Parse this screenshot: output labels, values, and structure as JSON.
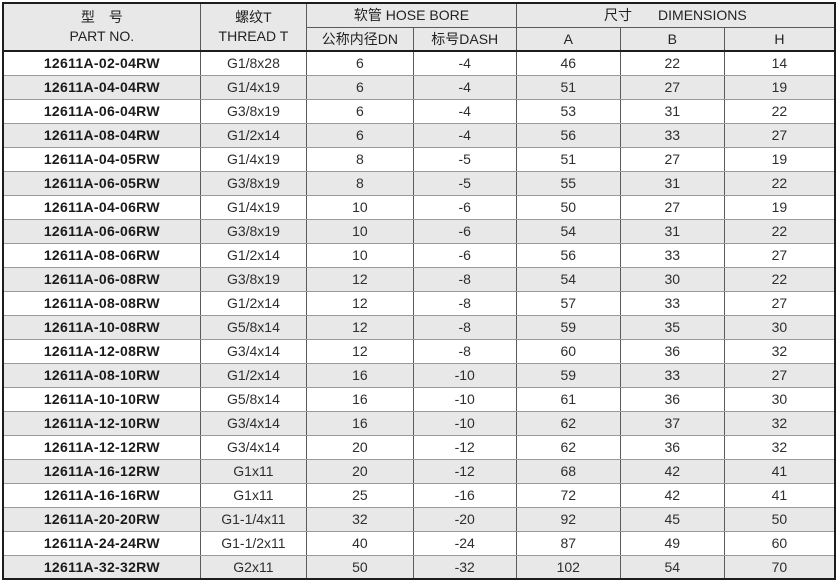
{
  "table": {
    "title_semantics": "hydraulic-fitting-specification-table",
    "headers": {
      "part_no_cn": "型　号",
      "part_no_en": "PART NO.",
      "thread_cn": "螺纹T",
      "thread_en": "THREAD  T",
      "hose_bore_cn": "软管",
      "hose_bore_en": "HOSE BORE",
      "dimensions_cn": "尺寸",
      "dimensions_en": "DIMENSIONS",
      "dn": "公称内径DN",
      "dash": "标号DASH",
      "a": "A",
      "b": "B",
      "h": "H"
    },
    "rows": [
      [
        "12611A-02-04RW",
        "G1/8x28",
        "6",
        "-4",
        "46",
        "22",
        "14"
      ],
      [
        "12611A-04-04RW",
        "G1/4x19",
        "6",
        "-4",
        "51",
        "27",
        "19"
      ],
      [
        "12611A-06-04RW",
        "G3/8x19",
        "6",
        "-4",
        "53",
        "31",
        "22"
      ],
      [
        "12611A-08-04RW",
        "G1/2x14",
        "6",
        "-4",
        "56",
        "33",
        "27"
      ],
      [
        "12611A-04-05RW",
        "G1/4x19",
        "8",
        "-5",
        "51",
        "27",
        "19"
      ],
      [
        "12611A-06-05RW",
        "G3/8x19",
        "8",
        "-5",
        "55",
        "31",
        "22"
      ],
      [
        "12611A-04-06RW",
        "G1/4x19",
        "10",
        "-6",
        "50",
        "27",
        "19"
      ],
      [
        "12611A-06-06RW",
        "G3/8x19",
        "10",
        "-6",
        "54",
        "31",
        "22"
      ],
      [
        "12611A-08-06RW",
        "G1/2x14",
        "10",
        "-6",
        "56",
        "33",
        "27"
      ],
      [
        "12611A-06-08RW",
        "G3/8x19",
        "12",
        "-8",
        "54",
        "30",
        "22"
      ],
      [
        "12611A-08-08RW",
        "G1/2x14",
        "12",
        "-8",
        "57",
        "33",
        "27"
      ],
      [
        "12611A-10-08RW",
        "G5/8x14",
        "12",
        "-8",
        "59",
        "35",
        "30"
      ],
      [
        "12611A-12-08RW",
        "G3/4x14",
        "12",
        "-8",
        "60",
        "36",
        "32"
      ],
      [
        "12611A-08-10RW",
        "G1/2x14",
        "16",
        "-10",
        "59",
        "33",
        "27"
      ],
      [
        "12611A-10-10RW",
        "G5/8x14",
        "16",
        "-10",
        "61",
        "36",
        "30"
      ],
      [
        "12611A-12-10RW",
        "G3/4x14",
        "16",
        "-10",
        "62",
        "37",
        "32"
      ],
      [
        "12611A-12-12RW",
        "G3/4x14",
        "20",
        "-12",
        "62",
        "36",
        "32"
      ],
      [
        "12611A-16-12RW",
        "G1x11",
        "20",
        "-12",
        "68",
        "42",
        "41"
      ],
      [
        "12611A-16-16RW",
        "G1x11",
        "25",
        "-16",
        "72",
        "42",
        "41"
      ],
      [
        "12611A-20-20RW",
        "G1-1/4x11",
        "32",
        "-20",
        "92",
        "45",
        "50"
      ],
      [
        "12611A-24-24RW",
        "G1-1/2x11",
        "40",
        "-24",
        "87",
        "49",
        "60"
      ],
      [
        "12611A-32-32RW",
        "G2x11",
        "50",
        "-32",
        "102",
        "54",
        "70"
      ]
    ],
    "colors": {
      "header_bg": "#e8e8e8",
      "alt_row_bg": "#e8e8e8",
      "row_bg": "#ffffff",
      "outer_border": "#1c1c1c",
      "grid_vertical": "#5a5a5a",
      "grid_horizontal": "#9a9a9a",
      "text": "#2e2e2e"
    }
  }
}
